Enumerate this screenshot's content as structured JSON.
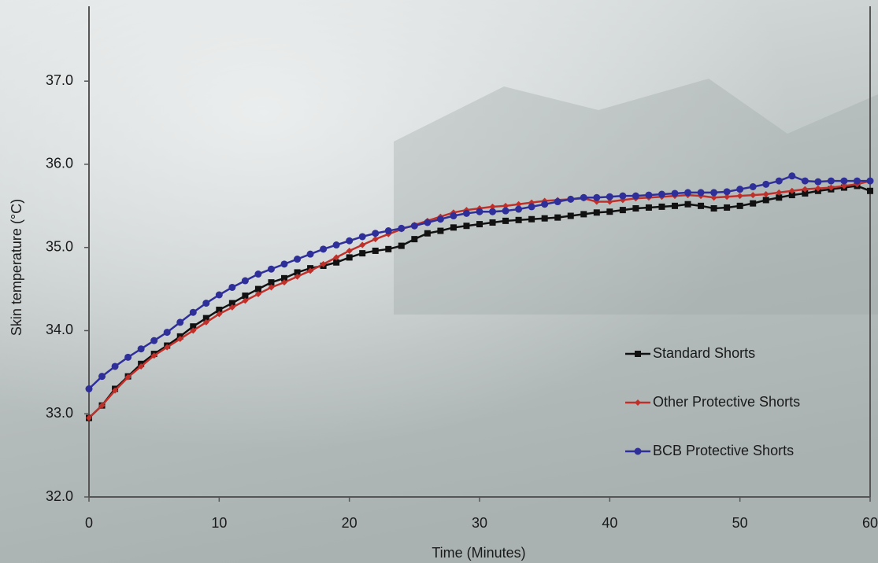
{
  "chart_data": {
    "type": "line",
    "x_label": "Time (Minutes)",
    "y_label": "Skin temperature (°C)",
    "x": [
      0,
      1,
      2,
      3,
      4,
      5,
      6,
      7,
      8,
      9,
      10,
      11,
      12,
      13,
      14,
      15,
      16,
      17,
      18,
      19,
      20,
      21,
      22,
      23,
      24,
      25,
      26,
      27,
      28,
      29,
      30,
      31,
      32,
      33,
      34,
      35,
      36,
      37,
      38,
      39,
      40,
      41,
      42,
      43,
      44,
      45,
      46,
      47,
      48,
      49,
      50,
      51,
      52,
      53,
      54,
      55,
      56,
      57,
      58,
      59,
      60
    ],
    "series": [
      {
        "name": "Standard Shorts",
        "color": "#111111",
        "marker": "square",
        "values": [
          32.95,
          33.1,
          33.3,
          33.45,
          33.6,
          33.72,
          33.82,
          33.93,
          34.05,
          34.15,
          34.25,
          34.33,
          34.42,
          34.5,
          34.58,
          34.63,
          34.7,
          34.75,
          34.78,
          34.82,
          34.88,
          34.93,
          34.96,
          34.98,
          35.02,
          35.1,
          35.17,
          35.2,
          35.24,
          35.26,
          35.28,
          35.3,
          35.32,
          35.33,
          35.34,
          35.35,
          35.36,
          35.38,
          35.4,
          35.42,
          35.43,
          35.45,
          35.47,
          35.48,
          35.49,
          35.5,
          35.52,
          35.5,
          35.47,
          35.48,
          35.5,
          35.53,
          35.57,
          35.6,
          35.63,
          35.65,
          35.68,
          35.7,
          35.72,
          35.74,
          35.68
        ]
      },
      {
        "name": "Other Protective Shorts",
        "color": "#c0302a",
        "marker": "diamond",
        "values": [
          32.95,
          33.1,
          33.28,
          33.44,
          33.57,
          33.7,
          33.8,
          33.9,
          34.0,
          34.1,
          34.2,
          34.28,
          34.36,
          34.44,
          34.52,
          34.58,
          34.65,
          34.72,
          34.8,
          34.88,
          34.96,
          35.03,
          35.1,
          35.16,
          35.22,
          35.27,
          35.32,
          35.37,
          35.42,
          35.45,
          35.47,
          35.49,
          35.5,
          35.52,
          35.54,
          35.56,
          35.57,
          35.58,
          35.59,
          35.55,
          35.55,
          35.57,
          35.59,
          35.6,
          35.61,
          35.62,
          35.63,
          35.62,
          35.6,
          35.61,
          35.62,
          35.63,
          35.64,
          35.66,
          35.68,
          35.7,
          35.71,
          35.72,
          35.74,
          35.76,
          35.8
        ]
      },
      {
        "name": "BCB Protective Shorts",
        "color": "#2f2f9a",
        "marker": "circle",
        "values": [
          33.3,
          33.45,
          33.57,
          33.68,
          33.78,
          33.88,
          33.98,
          34.1,
          34.22,
          34.33,
          34.43,
          34.52,
          34.6,
          34.68,
          34.74,
          34.8,
          34.86,
          34.92,
          34.98,
          35.03,
          35.08,
          35.13,
          35.17,
          35.2,
          35.23,
          35.26,
          35.3,
          35.34,
          35.38,
          35.41,
          35.43,
          35.43,
          35.44,
          35.46,
          35.49,
          35.52,
          35.55,
          35.58,
          35.6,
          35.6,
          35.61,
          35.62,
          35.62,
          35.63,
          35.64,
          35.65,
          35.66,
          35.66,
          35.66,
          35.67,
          35.7,
          35.73,
          35.76,
          35.8,
          35.86,
          35.8,
          35.79,
          35.8,
          35.8,
          35.8,
          35.8
        ]
      }
    ],
    "xlim": [
      0,
      60
    ],
    "xticks": [
      0,
      10,
      20,
      30,
      40,
      50,
      60
    ],
    "ylim": [
      32,
      37.9
    ],
    "yticks": [
      {
        "value": 32,
        "label": "32.0"
      },
      {
        "value": 33,
        "label": "33.0"
      },
      {
        "value": 34,
        "label": "34.0"
      },
      {
        "value": 35,
        "label": "35.0"
      },
      {
        "value": 36,
        "label": "36.0"
      },
      {
        "value": 37,
        "label": "37.0"
      }
    ],
    "legend": "right"
  }
}
